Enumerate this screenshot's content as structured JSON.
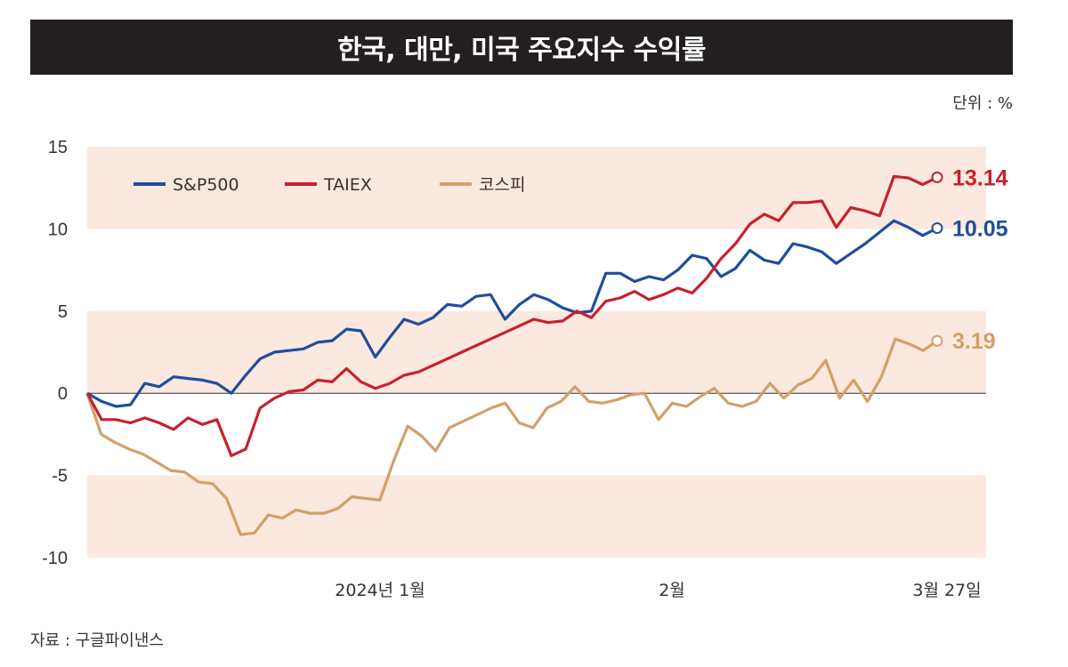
{
  "title": "한국, 대만, 미국 주요지수 수익률",
  "unit": "단위 : %",
  "source": "자료 : 구글파이낸스",
  "colors": {
    "sp500": "#1f4e9c",
    "taiex": "#c8202e",
    "kospi": "#d2a06a",
    "band": "#fbe8de"
  },
  "chart_data": {
    "type": "line",
    "ylim": [
      -10,
      15
    ],
    "yticks": [
      "15",
      "10",
      "5",
      "0",
      "-5",
      "-10"
    ],
    "xticks": [
      "2024년 1월",
      "2월",
      "3월 27일"
    ],
    "legend_position": "top-left",
    "series": [
      {
        "name": "S&P500",
        "end_label": "10.05",
        "values": [
          0,
          -0.5,
          -0.8,
          -0.7,
          0.6,
          0.4,
          1.0,
          0.9,
          0.8,
          0.6,
          0,
          1.1,
          2.1,
          2.5,
          2.6,
          2.7,
          3.1,
          3.2,
          3.9,
          3.8,
          2.2,
          3.4,
          4.5,
          4.2,
          4.6,
          5.4,
          5.3,
          5.9,
          6.0,
          4.5,
          5.4,
          6.0,
          5.7,
          5.2,
          4.9,
          5.0,
          7.3,
          7.3,
          6.8,
          7.1,
          6.9,
          7.5,
          8.4,
          8.2,
          7.1,
          7.6,
          8.7,
          8.1,
          7.9,
          9.1,
          8.9,
          8.6,
          7.9,
          8.5,
          9.1,
          9.8,
          10.5,
          10.1,
          9.6,
          10.05
        ]
      },
      {
        "name": "TAIEX",
        "end_label": "13.14",
        "values": [
          0,
          -1.6,
          -1.6,
          -1.8,
          -1.5,
          -1.8,
          -2.2,
          -1.5,
          -1.9,
          -1.6,
          -3.8,
          -3.4,
          -0.9,
          -0.3,
          0.1,
          0.2,
          0.8,
          0.7,
          1.5,
          0.7,
          0.3,
          0.6,
          1.1,
          1.3,
          1.7,
          2.1,
          2.5,
          2.9,
          3.3,
          3.7,
          4.1,
          4.5,
          4.3,
          4.4,
          5.0,
          4.6,
          5.6,
          5.8,
          6.2,
          5.7,
          6.0,
          6.4,
          6.1,
          7.0,
          8.2,
          9.1,
          10.3,
          10.9,
          10.5,
          11.6,
          11.6,
          11.7,
          10.1,
          11.3,
          11.1,
          10.8,
          13.2,
          13.1,
          12.7,
          13.14
        ]
      },
      {
        "name": "코스피",
        "end_label": "3.19",
        "values": [
          0,
          -2.5,
          -3.0,
          -3.4,
          -3.7,
          -4.2,
          -4.7,
          -4.8,
          -5.4,
          -5.5,
          -6.4,
          -8.6,
          -8.5,
          -7.4,
          -7.6,
          -7.1,
          -7.3,
          -7.3,
          -7.0,
          -6.3,
          -6.4,
          -6.5,
          -4.1,
          -2.0,
          -2.6,
          -3.5,
          -2.1,
          -1.7,
          -1.3,
          -0.9,
          -0.6,
          -1.8,
          -2.1,
          -0.9,
          -0.5,
          0.4,
          -0.5,
          -0.6,
          -0.4,
          -0.1,
          0,
          -1.6,
          -0.6,
          -0.8,
          -0.2,
          0.3,
          -0.6,
          -0.8,
          -0.5,
          0.6,
          -0.3,
          0.5,
          0.9,
          2.0,
          -0.3,
          0.8,
          -0.5,
          1.0,
          3.3,
          3.0,
          2.6,
          3.19
        ]
      }
    ]
  }
}
